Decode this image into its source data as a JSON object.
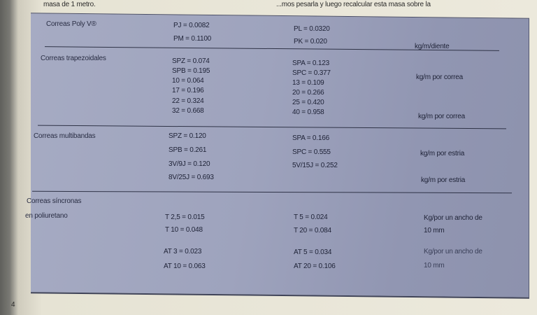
{
  "header_left": "masa de 1 metro.",
  "header_right": "...mos pesarla y luego recalcular esta masa sobre la",
  "page_number": "4",
  "sections": [
    {
      "label": "Correas Poly V®",
      "col1": [
        "PJ = 0.0082",
        "PM = 0.1100"
      ],
      "col2": [
        "PL = 0.0320",
        "PK = 0.020"
      ],
      "units": [
        "kg/m/diente"
      ]
    },
    {
      "label": "Correas trapezoidales",
      "col1": [
        "SPZ = 0.074",
        "SPB = 0.195",
        "10 = 0.064",
        "17 = 0.196",
        "22 = 0.324",
        "32 = 0.668"
      ],
      "col2": [
        "SPA = 0.123",
        "SPC = 0.377",
        "13 = 0.109",
        "20 = 0.266",
        "25 = 0.420",
        "40 = 0.958"
      ],
      "units": [
        "kg/m por correa",
        "kg/m por correa"
      ]
    },
    {
      "label": "Correas multibandas",
      "col1": [
        "SPZ = 0.120",
        "SPB = 0.261",
        "3V/9J = 0.120",
        "8V/25J = 0.693"
      ],
      "col2": [
        "SPA = 0.166",
        "SPC = 0.555",
        "5V/15J = 0.252"
      ],
      "units": [
        "kg/m por estria",
        "kg/m por estria"
      ]
    },
    {
      "label": "Correas síncronas",
      "label2": "en poliuretano",
      "col1": [
        "T 2,5 = 0.015",
        "T 10 = 0.048",
        "AT 3 = 0.023",
        "AT 10 = 0.063"
      ],
      "col2": [
        "T 5 = 0.024",
        "T 20 = 0.084",
        "AT 5 = 0.034",
        "AT 20 = 0.106"
      ],
      "units": [
        "Kg/por un ancho de",
        "10 mm",
        "Kg/por un ancho de",
        "10 mm"
      ]
    }
  ]
}
